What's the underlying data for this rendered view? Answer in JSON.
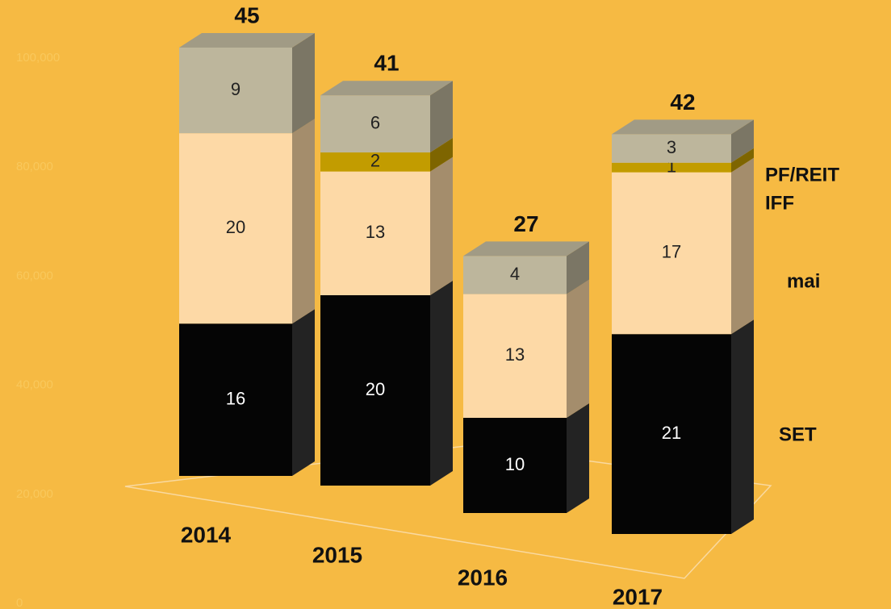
{
  "chart_data": {
    "type": "bar3d_stacked",
    "categories": [
      "2014",
      "2015",
      "2016",
      "2017"
    ],
    "series": [
      {
        "name": "SET",
        "color": "#050505",
        "values": [
          16,
          20,
          10,
          21
        ]
      },
      {
        "name": "mai",
        "color": "#fdd9a6",
        "values": [
          20,
          13,
          13,
          17
        ]
      },
      {
        "name": "IFF",
        "color": "#c29c00",
        "values": [
          null,
          2,
          null,
          1
        ]
      },
      {
        "name": "PF/REIT",
        "color": "#bdb69c",
        "values": [
          9,
          6,
          4,
          3
        ]
      }
    ],
    "totals": [
      45,
      41,
      27,
      42
    ],
    "yticks": [
      0,
      {
        "value": 20000,
        "label": "20,000"
      },
      {
        "value": 40000,
        "label": "40,000"
      },
      {
        "value": 60000,
        "label": "60,000"
      },
      {
        "value": 80000,
        "label": "80,000"
      },
      {
        "value": 100000,
        "label": "100,000"
      }
    ],
    "ylim": [
      0,
      100000
    ],
    "legend": "right"
  }
}
